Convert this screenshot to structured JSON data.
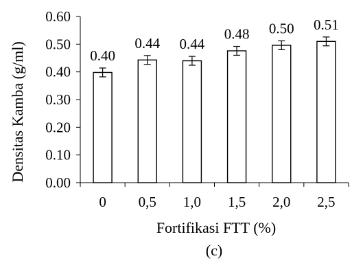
{
  "chart_data": {
    "type": "bar",
    "categories": [
      "0",
      "0,5",
      "1,0",
      "1,5",
      "2,0",
      "2,5"
    ],
    "values": [
      0.398,
      0.443,
      0.44,
      0.476,
      0.496,
      0.51
    ],
    "error": [
      0.016,
      0.016,
      0.016,
      0.016,
      0.016,
      0.016
    ],
    "data_labels": [
      "0.40",
      "0.44",
      "0.44",
      "0.48",
      "0.50",
      "0.51"
    ],
    "xlabel": "Fortifikasi FTT (%)",
    "ylabel": "Densitas Kamba (g/ml)",
    "ylim": [
      0,
      0.6
    ],
    "yticks": [
      0.0,
      0.1,
      0.2,
      0.3,
      0.4,
      0.5,
      0.6
    ],
    "ytick_labels": [
      "0.00",
      "0.10",
      "0.20",
      "0.30",
      "0.40",
      "0.50",
      "0.60"
    ],
    "panel_label": "(c)",
    "grid": false,
    "legend": "none",
    "bar_fill": "#ffffff",
    "bar_stroke": "#000000"
  }
}
